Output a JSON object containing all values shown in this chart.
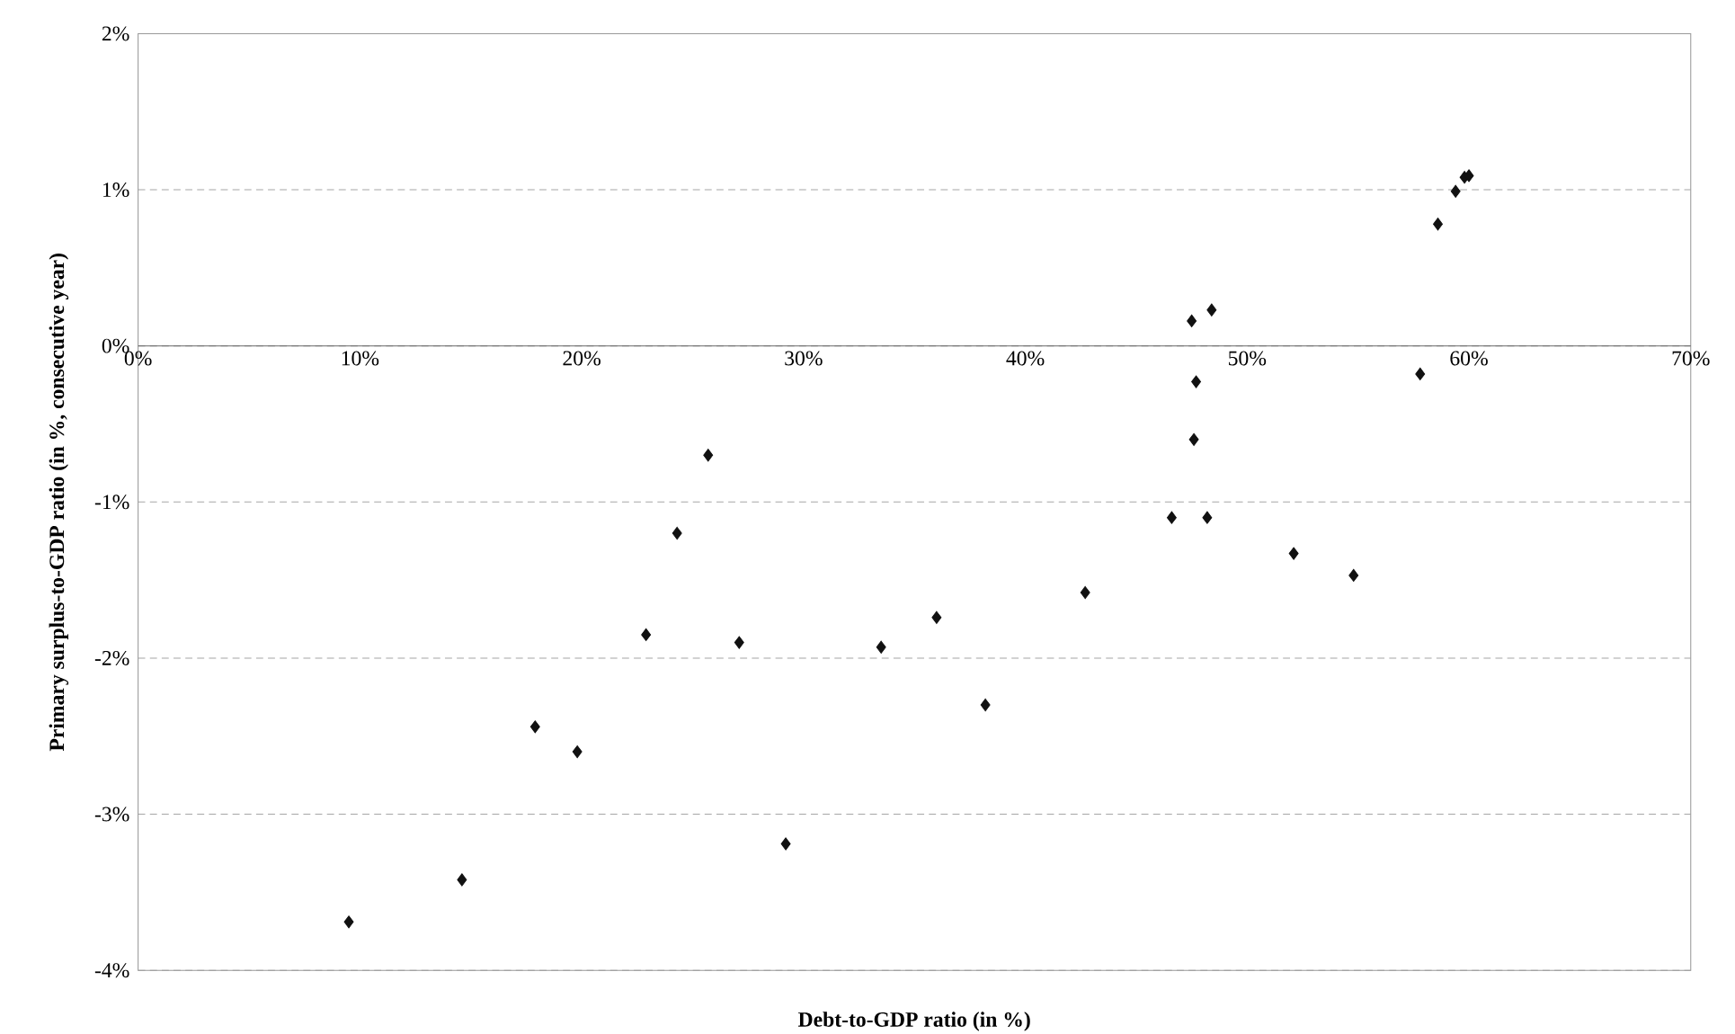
{
  "chart_data": {
    "type": "scatter",
    "xlabel": "Debt-to-GDP ratio (in %)",
    "ylabel": "Primary surplus-to-GDP ratio (in %, consecutive year)",
    "xlim": [
      0,
      70
    ],
    "ylim": [
      -4,
      2
    ],
    "xticks": [
      {
        "value": 0,
        "label": "0%"
      },
      {
        "value": 10,
        "label": "10%"
      },
      {
        "value": 20,
        "label": "20%"
      },
      {
        "value": 30,
        "label": "30%"
      },
      {
        "value": 40,
        "label": "40%"
      },
      {
        "value": 50,
        "label": "50%"
      },
      {
        "value": 60,
        "label": "60%"
      },
      {
        "value": 70,
        "label": "70%"
      }
    ],
    "yticks": [
      {
        "value": -4,
        "label": "-4%"
      },
      {
        "value": -3,
        "label": "-3%"
      },
      {
        "value": -2,
        "label": "-2%"
      },
      {
        "value": -1,
        "label": "-1%"
      },
      {
        "value": 0,
        "label": "0%"
      },
      {
        "value": 1,
        "label": "1%"
      },
      {
        "value": 2,
        "label": "2%"
      }
    ],
    "grid": "y",
    "marker": "diamond",
    "series": [
      {
        "color": "#111111",
        "x": [
          9.5,
          14.6,
          17.9,
          19.8,
          22.9,
          24.3,
          25.7,
          27.1,
          29.2,
          33.5,
          36.0,
          38.2,
          42.7,
          46.6,
          47.5,
          48.4,
          47.7,
          47.6,
          48.2,
          52.1,
          54.8,
          57.8,
          58.6,
          59.4,
          59.8,
          60.0
        ],
        "values": [
          -3.69,
          -3.42,
          -2.44,
          -2.6,
          -1.85,
          -1.2,
          -0.7,
          -1.9,
          -3.19,
          -1.93,
          -1.74,
          -2.3,
          -1.58,
          -1.1,
          0.16,
          0.23,
          -0.23,
          -0.6,
          -1.1,
          -1.33,
          -1.47,
          -0.18,
          0.78,
          0.99,
          1.08,
          1.09
        ]
      }
    ]
  }
}
